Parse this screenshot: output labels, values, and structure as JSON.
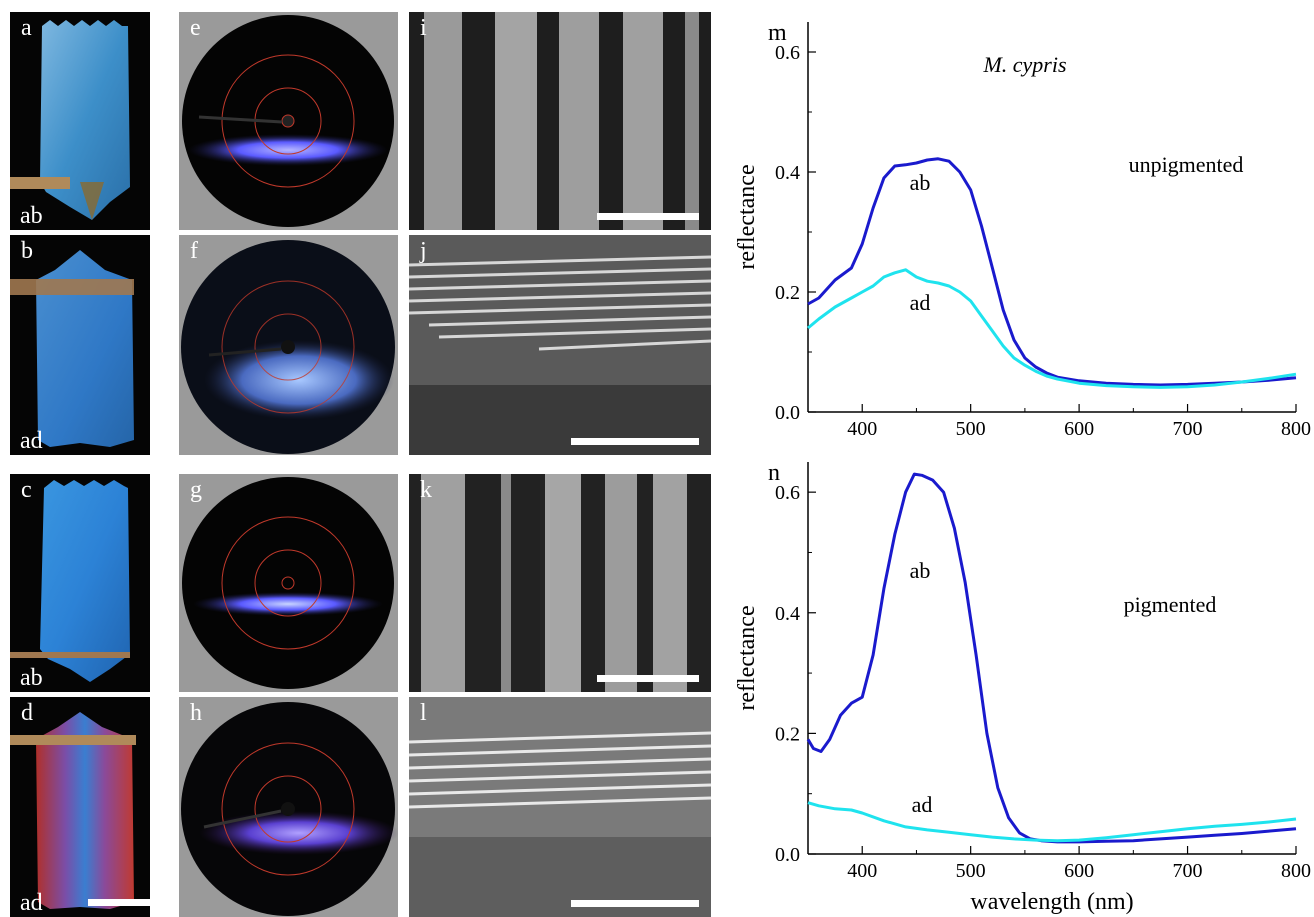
{
  "panels": {
    "photos": [
      {
        "label": "a",
        "side": "ab"
      },
      {
        "label": "b",
        "side": "ad"
      },
      {
        "label": "c",
        "side": "ab"
      },
      {
        "label": "d",
        "side": "ad"
      }
    ],
    "scatter": [
      {
        "label": "e"
      },
      {
        "label": "f"
      },
      {
        "label": "g"
      },
      {
        "label": "h"
      }
    ],
    "sem": [
      {
        "label": "i"
      },
      {
        "label": "j"
      },
      {
        "label": "k"
      },
      {
        "label": "l"
      }
    ]
  },
  "colors": {
    "ab_curve": "#1a1acd",
    "ad_curve": "#1fe3ee",
    "ring": "#c0392b"
  },
  "chart_data": [
    {
      "panel_label": "m",
      "type": "line",
      "title": "M. cypris",
      "subtitle": "unpigmented",
      "xlabel": "",
      "ylabel": "reflectance",
      "xlim": [
        350,
        800
      ],
      "ylim": [
        0.0,
        0.65
      ],
      "xticks": [
        400,
        500,
        600,
        700,
        800
      ],
      "yticks": [
        "0.0",
        "0.2",
        "0.4",
        "0.6"
      ],
      "series": [
        {
          "name": "ab",
          "x": [
            350,
            360,
            375,
            390,
            400,
            410,
            420,
            430,
            440,
            450,
            460,
            470,
            480,
            490,
            500,
            510,
            520,
            530,
            540,
            550,
            560,
            570,
            580,
            600,
            625,
            650,
            675,
            700,
            725,
            750,
            775,
            800
          ],
          "y": [
            0.18,
            0.19,
            0.22,
            0.24,
            0.28,
            0.34,
            0.39,
            0.41,
            0.412,
            0.415,
            0.42,
            0.422,
            0.418,
            0.4,
            0.37,
            0.31,
            0.24,
            0.17,
            0.12,
            0.09,
            0.075,
            0.065,
            0.058,
            0.052,
            0.048,
            0.046,
            0.045,
            0.046,
            0.048,
            0.05,
            0.053,
            0.057
          ]
        },
        {
          "name": "ad",
          "x": [
            350,
            360,
            375,
            390,
            400,
            410,
            420,
            430,
            440,
            450,
            460,
            470,
            480,
            490,
            500,
            510,
            520,
            530,
            540,
            550,
            560,
            570,
            580,
            600,
            625,
            650,
            675,
            700,
            725,
            750,
            775,
            800
          ],
          "y": [
            0.14,
            0.155,
            0.175,
            0.19,
            0.2,
            0.21,
            0.225,
            0.232,
            0.237,
            0.225,
            0.218,
            0.215,
            0.21,
            0.2,
            0.185,
            0.16,
            0.135,
            0.11,
            0.09,
            0.078,
            0.068,
            0.06,
            0.055,
            0.048,
            0.044,
            0.042,
            0.041,
            0.042,
            0.045,
            0.05,
            0.056,
            0.063
          ]
        }
      ]
    },
    {
      "panel_label": "n",
      "type": "line",
      "title": "",
      "subtitle": "pigmented",
      "xlabel": "wavelength (nm)",
      "ylabel": "reflectance",
      "xlim": [
        350,
        800
      ],
      "ylim": [
        0.0,
        0.65
      ],
      "xticks": [
        400,
        500,
        600,
        700,
        800
      ],
      "yticks": [
        "0.0",
        "0.2",
        "0.4",
        "0.6"
      ],
      "series": [
        {
          "name": "ab",
          "x": [
            350,
            355,
            362,
            370,
            380,
            390,
            400,
            410,
            420,
            430,
            440,
            448,
            455,
            465,
            475,
            485,
            495,
            505,
            515,
            525,
            535,
            545,
            555,
            565,
            580,
            600,
            625,
            650,
            675,
            700,
            725,
            750,
            775,
            800
          ],
          "y": [
            0.19,
            0.175,
            0.17,
            0.19,
            0.23,
            0.25,
            0.26,
            0.33,
            0.44,
            0.53,
            0.6,
            0.63,
            0.628,
            0.62,
            0.6,
            0.54,
            0.45,
            0.33,
            0.2,
            0.11,
            0.06,
            0.035,
            0.025,
            0.022,
            0.02,
            0.02,
            0.021,
            0.022,
            0.025,
            0.028,
            0.031,
            0.034,
            0.038,
            0.042
          ]
        },
        {
          "name": "ad",
          "x": [
            350,
            360,
            375,
            390,
            400,
            420,
            440,
            460,
            480,
            500,
            520,
            540,
            560,
            580,
            600,
            625,
            650,
            675,
            700,
            725,
            750,
            775,
            800
          ],
          "y": [
            0.085,
            0.08,
            0.075,
            0.073,
            0.068,
            0.055,
            0.045,
            0.04,
            0.036,
            0.032,
            0.028,
            0.025,
            0.023,
            0.022,
            0.023,
            0.027,
            0.032,
            0.037,
            0.042,
            0.046,
            0.049,
            0.053,
            0.058
          ]
        }
      ]
    }
  ]
}
